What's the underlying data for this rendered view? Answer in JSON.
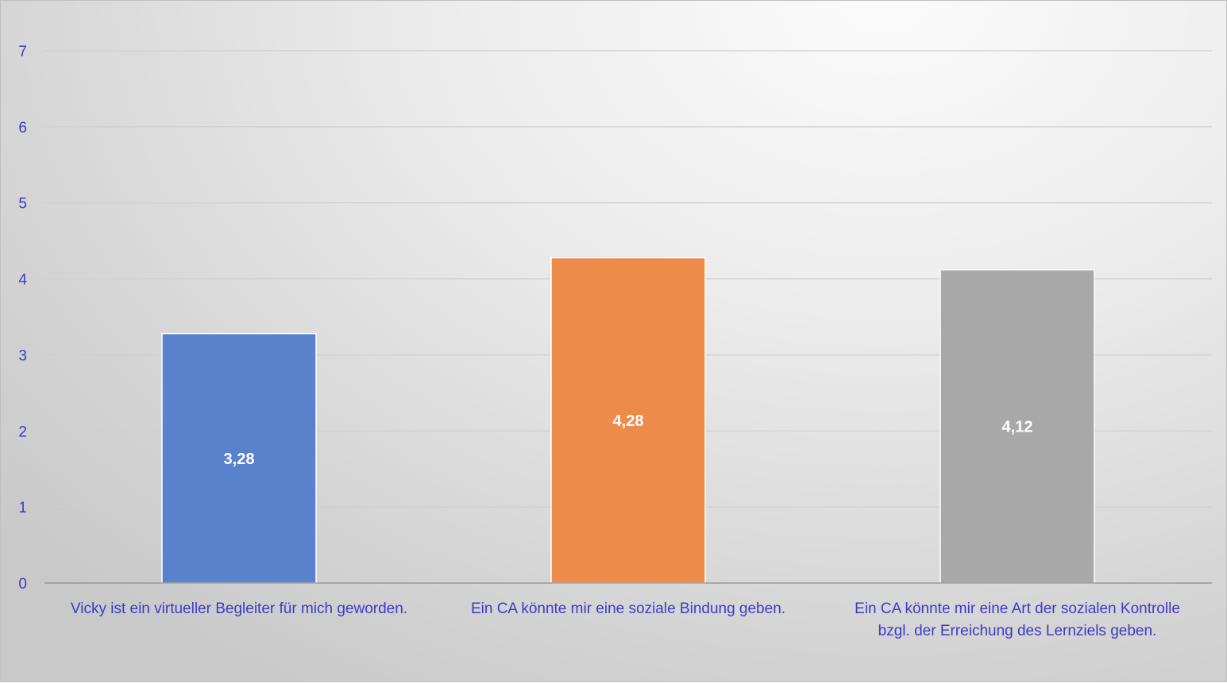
{
  "chart_data": {
    "type": "bar",
    "title": "",
    "xlabel": "",
    "ylabel": "",
    "ylim": [
      0,
      7
    ],
    "yticks": [
      0,
      1,
      2,
      3,
      4,
      5,
      6,
      7
    ],
    "grid": true,
    "legend": "none",
    "categories": [
      [
        "Vicky ist ein virtueller Begleiter  für mich geworden."
      ],
      [
        "Ein CA könnte mir eine soziale Bindung  geben."
      ],
      [
        "Ein CA könnte mir eine Art der sozialen Kontrolle",
        "bzgl. der Erreichung des Lernziels geben."
      ]
    ],
    "values": [
      3.28,
      4.28,
      4.12
    ],
    "value_labels": [
      "3,28",
      "4,28",
      "4,12"
    ],
    "colors": [
      "#5a82cc",
      "#ed8b4a",
      "#a8a8a8"
    ]
  }
}
